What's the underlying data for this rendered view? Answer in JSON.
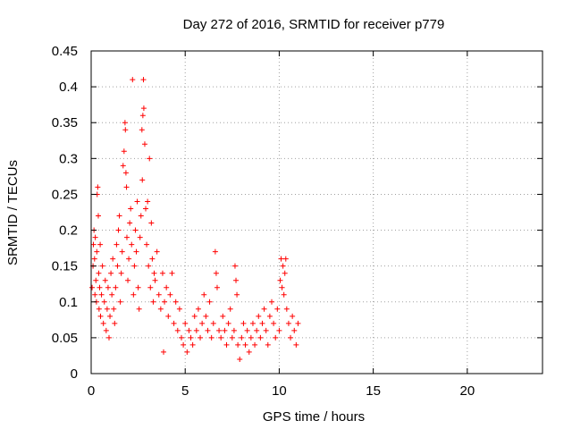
{
  "chart_data": {
    "type": "scatter",
    "title": "Day 272 of 2016, SRMTID for receiver p779",
    "xlabel": "GPS time / hours",
    "ylabel": "SRMTID / TECUs",
    "xlim": [
      0,
      24
    ],
    "ylim": [
      0,
      0.45
    ],
    "x_ticks": [
      0,
      5,
      10,
      15,
      20
    ],
    "x_tick_labels": [
      "0",
      "5",
      "10",
      "15",
      "20"
    ],
    "y_ticks": [
      0,
      0.05,
      0.1,
      0.15,
      0.2,
      0.25,
      0.3,
      0.35,
      0.4,
      0.45
    ],
    "y_tick_labels": [
      "0",
      "0.05",
      "0.1",
      "0.15",
      "0.2",
      "0.25",
      "0.3",
      "0.35",
      "0.4",
      "0.45"
    ],
    "grid": true,
    "marker": "+",
    "color": "#ff0000",
    "series": [
      {
        "name": "SRMTID",
        "note": "dense cloud of points from 0 to ~11 h",
        "points": [
          [
            0.05,
            0.12
          ],
          [
            0.1,
            0.15
          ],
          [
            0.12,
            0.18
          ],
          [
            0.15,
            0.2
          ],
          [
            0.18,
            0.16
          ],
          [
            0.2,
            0.11
          ],
          [
            0.22,
            0.19
          ],
          [
            0.25,
            0.13
          ],
          [
            0.28,
            0.1
          ],
          [
            0.3,
            0.17
          ],
          [
            0.32,
            0.25
          ],
          [
            0.35,
            0.26
          ],
          [
            0.38,
            0.22
          ],
          [
            0.4,
            0.14
          ],
          [
            0.42,
            0.09
          ],
          [
            0.45,
            0.12
          ],
          [
            0.48,
            0.18
          ],
          [
            0.5,
            0.08
          ],
          [
            0.55,
            0.11
          ],
          [
            0.6,
            0.15
          ],
          [
            0.65,
            0.07
          ],
          [
            0.7,
            0.1
          ],
          [
            0.75,
            0.13
          ],
          [
            0.8,
            0.06
          ],
          [
            0.85,
            0.09
          ],
          [
            0.9,
            0.12
          ],
          [
            0.95,
            0.05
          ],
          [
            1.0,
            0.08
          ],
          [
            1.05,
            0.14
          ],
          [
            1.1,
            0.11
          ],
          [
            1.15,
            0.16
          ],
          [
            1.2,
            0.09
          ],
          [
            1.25,
            0.07
          ],
          [
            1.3,
            0.12
          ],
          [
            1.35,
            0.18
          ],
          [
            1.4,
            0.15
          ],
          [
            1.45,
            0.2
          ],
          [
            1.5,
            0.22
          ],
          [
            1.55,
            0.1
          ],
          [
            1.6,
            0.14
          ],
          [
            1.65,
            0.17
          ],
          [
            1.7,
            0.29
          ],
          [
            1.75,
            0.31
          ],
          [
            1.8,
            0.35
          ],
          [
            1.82,
            0.34
          ],
          [
            1.85,
            0.28
          ],
          [
            1.88,
            0.26
          ],
          [
            1.9,
            0.19
          ],
          [
            1.95,
            0.13
          ],
          [
            2.0,
            0.16
          ],
          [
            2.05,
            0.21
          ],
          [
            2.1,
            0.23
          ],
          [
            2.15,
            0.18
          ],
          [
            2.2,
            0.41
          ],
          [
            2.25,
            0.11
          ],
          [
            2.3,
            0.15
          ],
          [
            2.35,
            0.2
          ],
          [
            2.4,
            0.17
          ],
          [
            2.45,
            0.24
          ],
          [
            2.5,
            0.12
          ],
          [
            2.55,
            0.09
          ],
          [
            2.6,
            0.19
          ],
          [
            2.65,
            0.22
          ],
          [
            2.7,
            0.34
          ],
          [
            2.72,
            0.27
          ],
          [
            2.75,
            0.36
          ],
          [
            2.78,
            0.41
          ],
          [
            2.8,
            0.37
          ],
          [
            2.85,
            0.32
          ],
          [
            2.9,
            0.23
          ],
          [
            2.95,
            0.18
          ],
          [
            3.0,
            0.24
          ],
          [
            3.05,
            0.15
          ],
          [
            3.1,
            0.3
          ],
          [
            3.15,
            0.12
          ],
          [
            3.2,
            0.21
          ],
          [
            3.25,
            0.16
          ],
          [
            3.3,
            0.1
          ],
          [
            3.35,
            0.14
          ],
          [
            3.4,
            0.13
          ],
          [
            3.5,
            0.17
          ],
          [
            3.6,
            0.11
          ],
          [
            3.7,
            0.09
          ],
          [
            3.8,
            0.14
          ],
          [
            3.85,
            0.03
          ],
          [
            3.9,
            0.1
          ],
          [
            4.0,
            0.12
          ],
          [
            4.1,
            0.08
          ],
          [
            4.2,
            0.11
          ],
          [
            4.3,
            0.14
          ],
          [
            4.4,
            0.07
          ],
          [
            4.5,
            0.1
          ],
          [
            4.6,
            0.06
          ],
          [
            4.7,
            0.09
          ],
          [
            4.8,
            0.05
          ],
          [
            4.9,
            0.04
          ],
          [
            5.0,
            0.07
          ],
          [
            5.1,
            0.03
          ],
          [
            5.2,
            0.06
          ],
          [
            5.3,
            0.05
          ],
          [
            5.4,
            0.04
          ],
          [
            5.5,
            0.08
          ],
          [
            5.6,
            0.06
          ],
          [
            5.7,
            0.09
          ],
          [
            5.8,
            0.05
          ],
          [
            5.9,
            0.07
          ],
          [
            6.0,
            0.11
          ],
          [
            6.1,
            0.08
          ],
          [
            6.2,
            0.06
          ],
          [
            6.3,
            0.1
          ],
          [
            6.4,
            0.05
          ],
          [
            6.5,
            0.07
          ],
          [
            6.6,
            0.17
          ],
          [
            6.65,
            0.14
          ],
          [
            6.7,
            0.12
          ],
          [
            6.8,
            0.06
          ],
          [
            6.9,
            0.05
          ],
          [
            7.0,
            0.08
          ],
          [
            7.1,
            0.06
          ],
          [
            7.2,
            0.04
          ],
          [
            7.3,
            0.07
          ],
          [
            7.4,
            0.09
          ],
          [
            7.5,
            0.05
          ],
          [
            7.6,
            0.06
          ],
          [
            7.65,
            0.15
          ],
          [
            7.7,
            0.13
          ],
          [
            7.75,
            0.11
          ],
          [
            7.8,
            0.04
          ],
          [
            7.9,
            0.02
          ],
          [
            8.0,
            0.05
          ],
          [
            8.1,
            0.07
          ],
          [
            8.2,
            0.04
          ],
          [
            8.3,
            0.06
          ],
          [
            8.4,
            0.03
          ],
          [
            8.5,
            0.05
          ],
          [
            8.6,
            0.07
          ],
          [
            8.7,
            0.04
          ],
          [
            8.8,
            0.06
          ],
          [
            8.9,
            0.08
          ],
          [
            9.0,
            0.05
          ],
          [
            9.1,
            0.07
          ],
          [
            9.2,
            0.09
          ],
          [
            9.3,
            0.06
          ],
          [
            9.4,
            0.04
          ],
          [
            9.5,
            0.08
          ],
          [
            9.6,
            0.1
          ],
          [
            9.7,
            0.07
          ],
          [
            9.8,
            0.05
          ],
          [
            9.9,
            0.09
          ],
          [
            10.0,
            0.06
          ],
          [
            10.05,
            0.13
          ],
          [
            10.1,
            0.16
          ],
          [
            10.15,
            0.12
          ],
          [
            10.2,
            0.15
          ],
          [
            10.25,
            0.11
          ],
          [
            10.3,
            0.14
          ],
          [
            10.35,
            0.16
          ],
          [
            10.4,
            0.09
          ],
          [
            10.5,
            0.07
          ],
          [
            10.6,
            0.05
          ],
          [
            10.7,
            0.08
          ],
          [
            10.8,
            0.06
          ],
          [
            10.9,
            0.04
          ],
          [
            11.0,
            0.07
          ]
        ]
      }
    ]
  }
}
